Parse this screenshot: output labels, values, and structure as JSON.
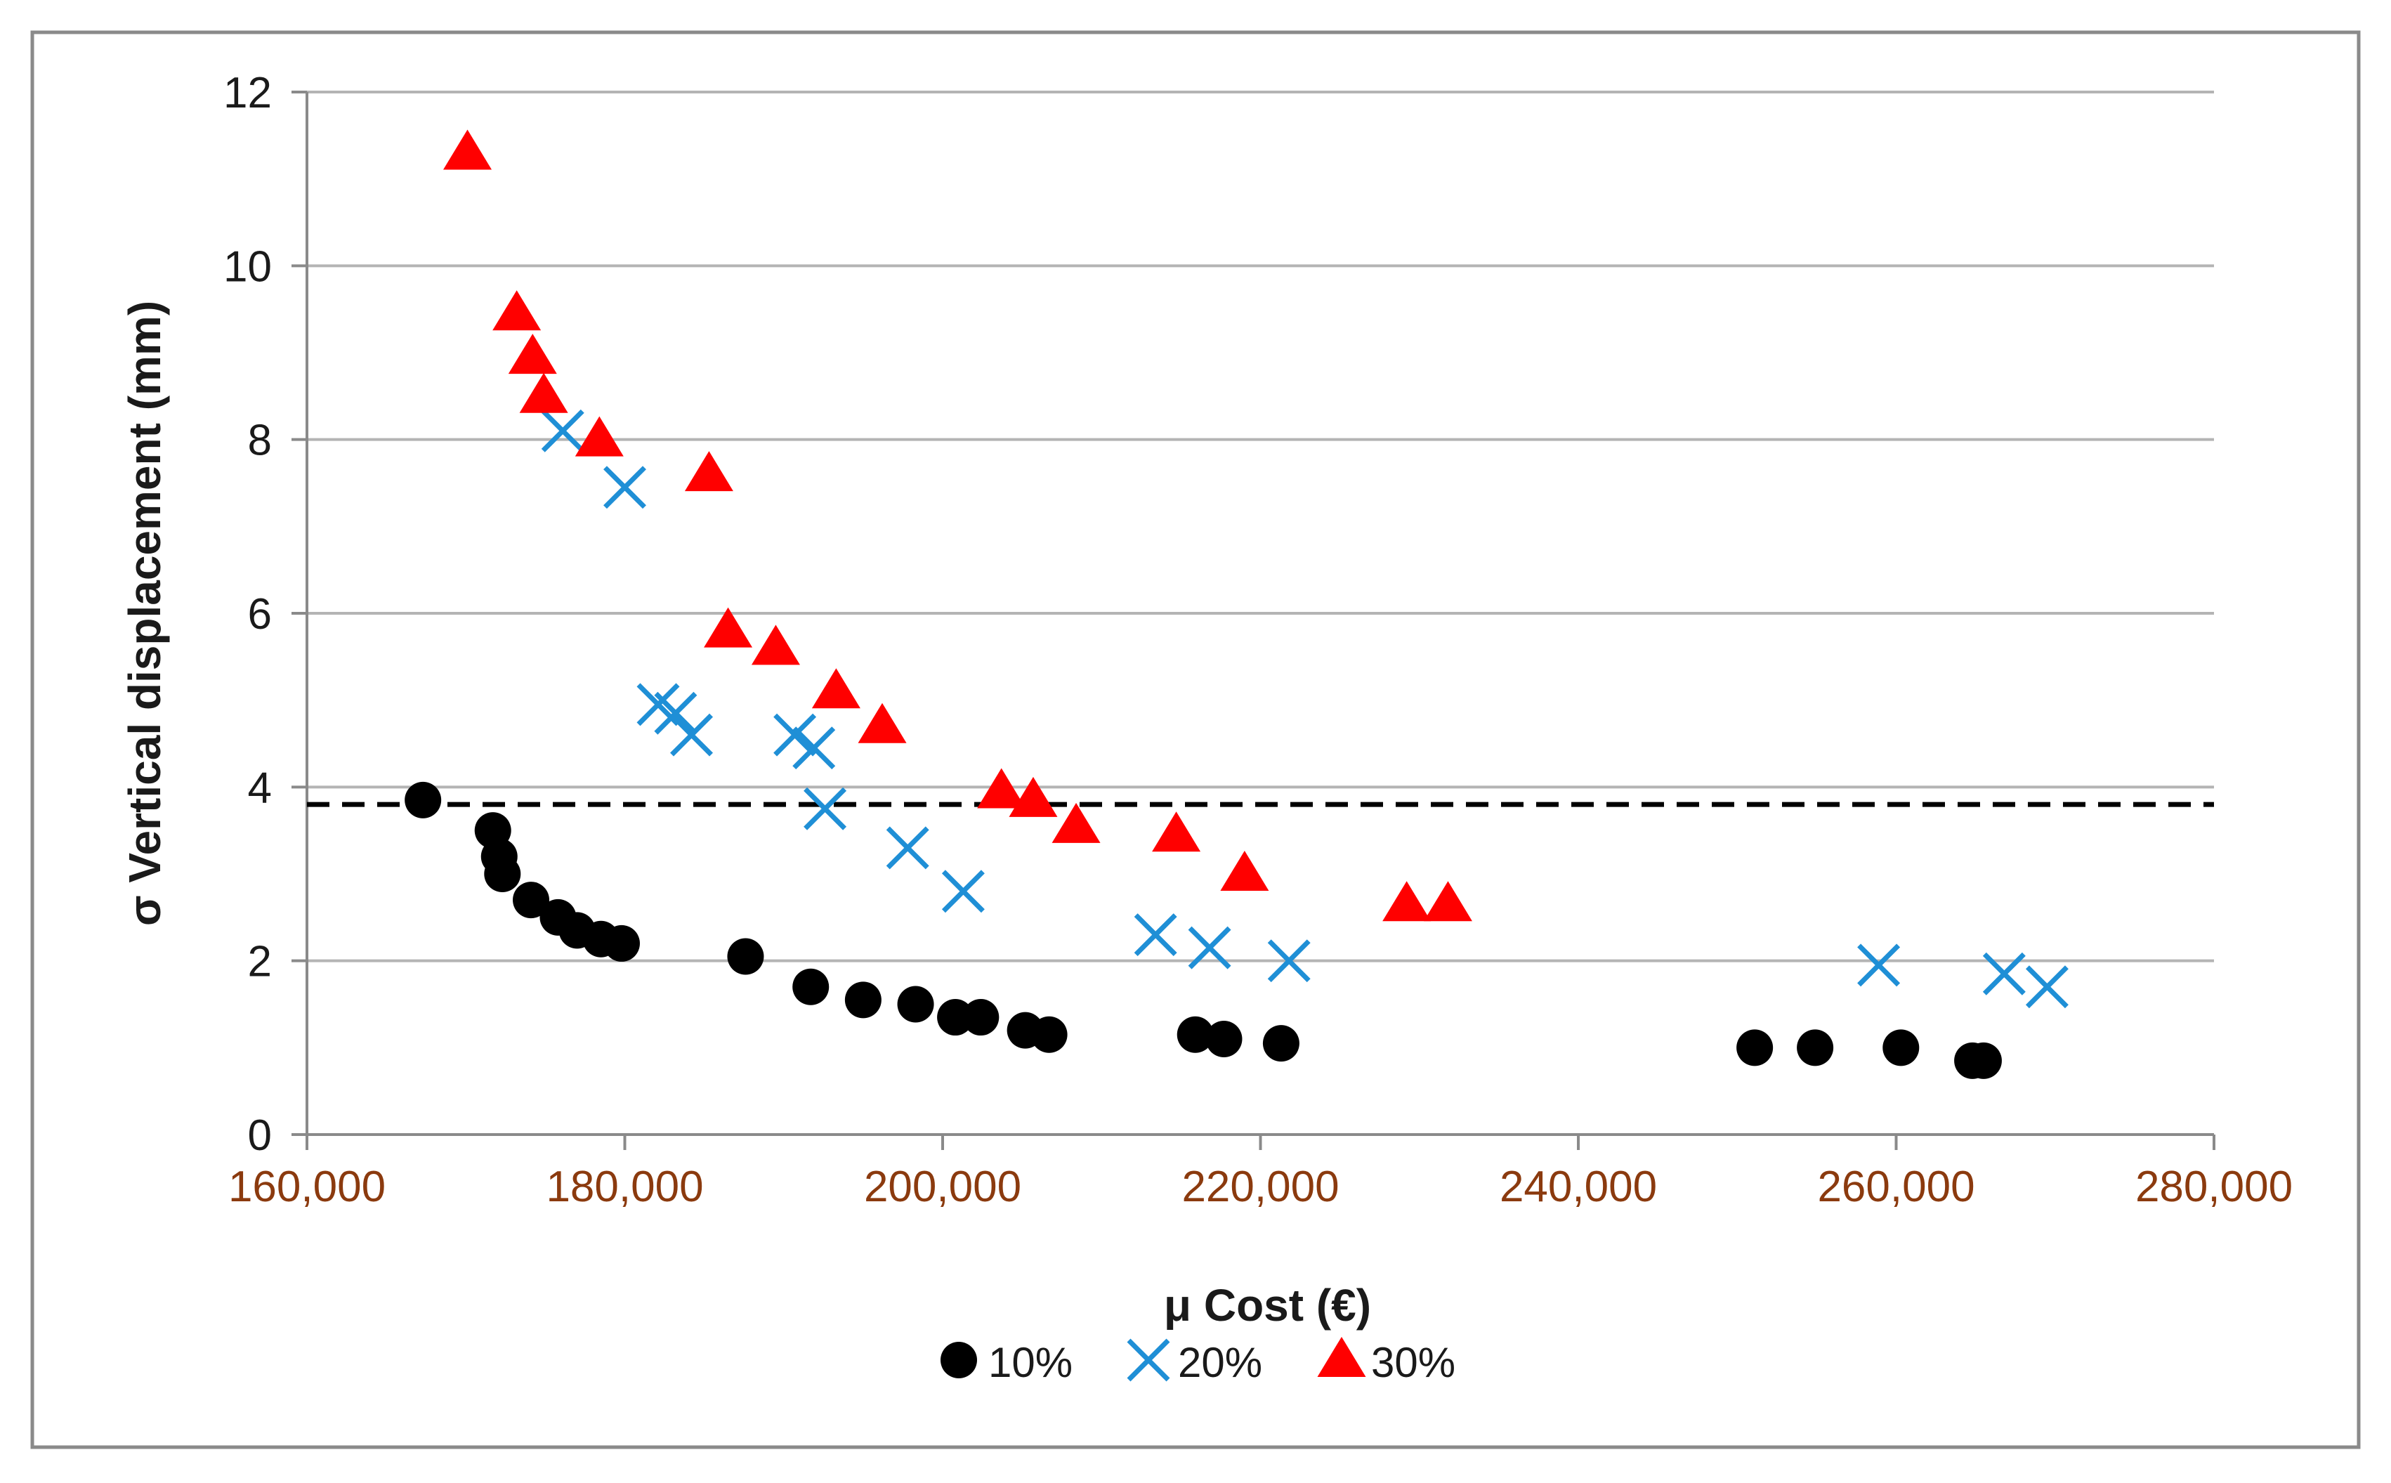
{
  "chart_data": {
    "type": "scatter",
    "title": "",
    "xlabel": "μ Cost (€)",
    "ylabel": "σ Vertical displacement  (mm)",
    "xlim": [
      160000,
      280000
    ],
    "ylim": [
      0,
      12
    ],
    "xticks": [
      160000,
      180000,
      200000,
      220000,
      240000,
      260000,
      280000
    ],
    "xtick_labels": [
      "160,000",
      "180,000",
      "200,000",
      "220,000",
      "240,000",
      "260,000",
      "280,000"
    ],
    "yticks": [
      0,
      2,
      4,
      6,
      8,
      10,
      12
    ],
    "ytick_labels": [
      "0",
      "2",
      "4",
      "6",
      "8",
      "10",
      "12"
    ],
    "grid": "horizontal",
    "legend_position": "bottom",
    "reference_line": {
      "y": 3.8,
      "style": "dashed",
      "color": "#000000"
    },
    "colors": {
      "axis_tick_label_x": "#8B3A0E",
      "axis_text": "#1a1a1a",
      "grid": "#b4b4b4",
      "s10": "#000000",
      "s20": "#1F8FD6",
      "s30": "#FF0000"
    },
    "series": [
      {
        "name": "10%",
        "marker": "circle",
        "color": "#000000",
        "points": [
          [
            167300,
            3.85
          ],
          [
            171700,
            3.5
          ],
          [
            172100,
            3.2
          ],
          [
            172300,
            3.0
          ],
          [
            174100,
            2.7
          ],
          [
            175800,
            2.5
          ],
          [
            177000,
            2.35
          ],
          [
            178500,
            2.25
          ],
          [
            179800,
            2.2
          ],
          [
            187600,
            2.05
          ],
          [
            191700,
            1.7
          ],
          [
            195000,
            1.55
          ],
          [
            198300,
            1.5
          ],
          [
            200800,
            1.35
          ],
          [
            202400,
            1.35
          ],
          [
            205200,
            1.2
          ],
          [
            206700,
            1.15
          ],
          [
            215900,
            1.15
          ],
          [
            217700,
            1.1
          ],
          [
            221300,
            1.05
          ],
          [
            251100,
            1.0
          ],
          [
            254900,
            1.0
          ],
          [
            260300,
            1.0
          ],
          [
            264800,
            0.85
          ],
          [
            265500,
            0.85
          ]
        ]
      },
      {
        "name": "20%",
        "marker": "x",
        "color": "#1F8FD6",
        "points": [
          [
            176100,
            8.1
          ],
          [
            180000,
            7.45
          ],
          [
            182100,
            4.95
          ],
          [
            183200,
            4.85
          ],
          [
            184200,
            4.6
          ],
          [
            190700,
            4.6
          ],
          [
            191900,
            4.45
          ],
          [
            192600,
            3.75
          ],
          [
            197800,
            3.3
          ],
          [
            201300,
            2.8
          ],
          [
            213400,
            2.3
          ],
          [
            216800,
            2.15
          ],
          [
            221800,
            2.0
          ],
          [
            258900,
            1.95
          ],
          [
            266800,
            1.85
          ],
          [
            269500,
            1.7
          ]
        ]
      },
      {
        "name": "30%",
        "marker": "triangle",
        "color": "#FF0000",
        "points": [
          [
            170100,
            11.3
          ],
          [
            173200,
            9.45
          ],
          [
            174200,
            8.95
          ],
          [
            174900,
            8.5
          ],
          [
            178400,
            8.0
          ],
          [
            185300,
            7.6
          ],
          [
            186500,
            5.8
          ],
          [
            189500,
            5.6
          ],
          [
            193300,
            5.1
          ],
          [
            196200,
            4.7
          ],
          [
            203700,
            3.95
          ],
          [
            205700,
            3.85
          ],
          [
            208400,
            3.55
          ],
          [
            214700,
            3.45
          ],
          [
            219000,
            3.0
          ],
          [
            229200,
            2.65
          ],
          [
            231800,
            2.65
          ]
        ]
      }
    ]
  }
}
